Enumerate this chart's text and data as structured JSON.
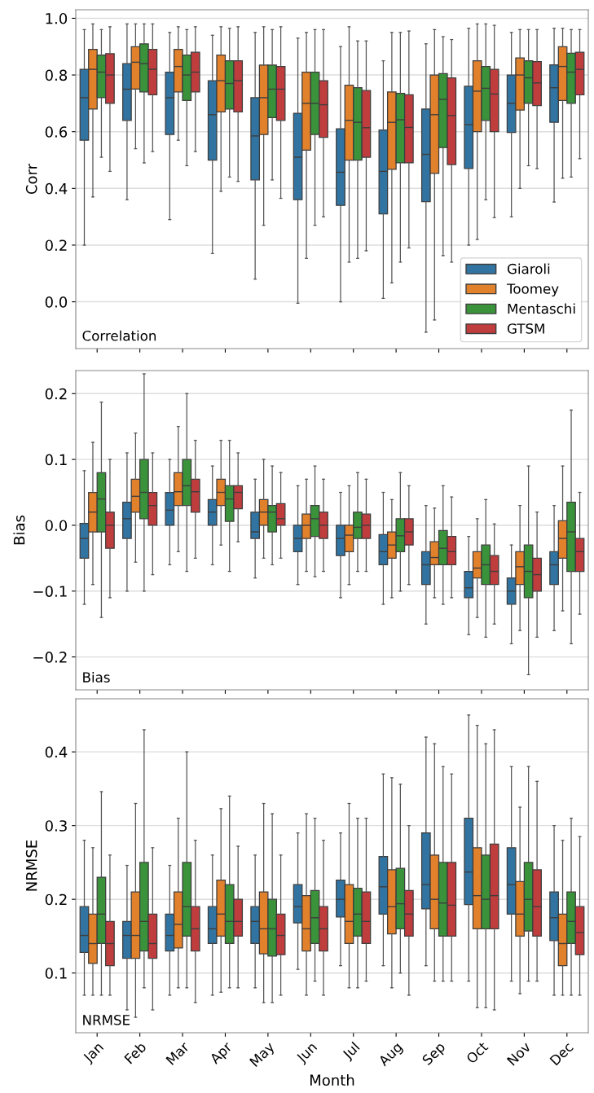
{
  "chart_data": [
    {
      "type": "box",
      "ylabel": "Corr",
      "annotations": [
        "Correlation"
      ],
      "categories": [
        null,
        null,
        null,
        null,
        null,
        null,
        null,
        null,
        null,
        null,
        null,
        null
      ],
      "ylim": [
        -0.165,
        1.03
      ],
      "yticks": [
        {
          "value": 0,
          "label": "0.0"
        },
        {
          "value": 0.2,
          "label": "0.2"
        },
        {
          "value": 0.4,
          "label": "0.4"
        },
        {
          "value": 0.6,
          "label": "0.6"
        },
        {
          "value": 0.8,
          "label": "0.8"
        },
        {
          "value": 1,
          "label": "1.0"
        }
      ],
      "grid": "y",
      "legend": "bottom right",
      "tick_labels": "y",
      "series": [
        {
          "name": "Giaroli",
          "color": "#3274a1",
          "boxes": [
            {
              "low": 0.2,
              "q1": 0.57,
              "median": 0.72,
              "q3": 0.82,
              "high": 0.96
            },
            {
              "low": 0.36,
              "q1": 0.64,
              "median": 0.75,
              "q3": 0.84,
              "high": 0.98
            },
            {
              "low": 0.29,
              "q1": 0.59,
              "median": 0.72,
              "q3": 0.81,
              "high": 0.95
            },
            {
              "low": 0.17,
              "q1": 0.5,
              "median": 0.66,
              "q3": 0.78,
              "high": 0.94
            },
            {
              "low": 0.08,
              "q1": 0.43,
              "median": 0.585,
              "q3": 0.72,
              "high": 0.95
            },
            {
              "low": -0.005,
              "q1": 0.36,
              "median": 0.51,
              "q3": 0.665,
              "high": 0.93
            },
            {
              "low": 0.0,
              "q1": 0.34,
              "median": 0.457,
              "q3": 0.61,
              "high": 0.9
            },
            {
              "low": 0.012,
              "q1": 0.31,
              "median": 0.46,
              "q3": 0.606,
              "high": 0.85
            },
            {
              "low": -0.107,
              "q1": 0.353,
              "median": 0.52,
              "q3": 0.68,
              "high": 0.91
            },
            {
              "low": 0.2,
              "q1": 0.47,
              "median": 0.625,
              "q3": 0.76,
              "high": 0.965
            },
            {
              "low": 0.3,
              "q1": 0.597,
              "median": 0.7,
              "q3": 0.8,
              "high": 0.95
            },
            {
              "low": 0.352,
              "q1": 0.633,
              "median": 0.755,
              "q3": 0.836,
              "high": 0.965
            }
          ]
        },
        {
          "name": "Toomey",
          "color": "#e1812c",
          "boxes": [
            {
              "low": 0.37,
              "q1": 0.68,
              "median": 0.82,
              "q3": 0.89,
              "high": 0.98
            },
            {
              "low": 0.54,
              "q1": 0.75,
              "median": 0.845,
              "q3": 0.9,
              "high": 0.98
            },
            {
              "low": 0.57,
              "q1": 0.74,
              "median": 0.83,
              "q3": 0.89,
              "high": 0.97
            },
            {
              "low": 0.39,
              "q1": 0.67,
              "median": 0.78,
              "q3": 0.87,
              "high": 0.97
            },
            {
              "low": 0.27,
              "q1": 0.59,
              "median": 0.72,
              "q3": 0.835,
              "high": 0.97
            },
            {
              "low": 0.153,
              "q1": 0.535,
              "median": 0.7,
              "q3": 0.81,
              "high": 0.95
            },
            {
              "low": 0.14,
              "q1": 0.5,
              "median": 0.64,
              "q3": 0.764,
              "high": 0.97
            },
            {
              "low": 0.067,
              "q1": 0.467,
              "median": 0.633,
              "q3": 0.74,
              "high": 0.95
            },
            {
              "low": -0.064,
              "q1": 0.453,
              "median": 0.66,
              "q3": 0.8,
              "high": 0.96
            },
            {
              "low": 0.22,
              "q1": 0.6,
              "median": 0.743,
              "q3": 0.85,
              "high": 0.98
            },
            {
              "low": 0.4,
              "q1": 0.676,
              "median": 0.8,
              "q3": 0.86,
              "high": 0.96
            },
            {
              "low": 0.436,
              "q1": 0.71,
              "median": 0.83,
              "q3": 0.9,
              "high": 0.965
            }
          ]
        },
        {
          "name": "Mentaschi",
          "color": "#3a923a",
          "boxes": [
            {
              "low": 0.51,
              "q1": 0.72,
              "median": 0.81,
              "q3": 0.87,
              "high": 0.96
            },
            {
              "low": 0.49,
              "q1": 0.74,
              "median": 0.84,
              "q3": 0.91,
              "high": 0.98
            },
            {
              "low": 0.48,
              "q1": 0.71,
              "median": 0.8,
              "q3": 0.87,
              "high": 0.96
            },
            {
              "low": 0.44,
              "q1": 0.68,
              "median": 0.77,
              "q3": 0.85,
              "high": 0.965
            },
            {
              "low": 0.43,
              "q1": 0.65,
              "median": 0.75,
              "q3": 0.835,
              "high": 0.96
            },
            {
              "low": 0.27,
              "q1": 0.59,
              "median": 0.7,
              "q3": 0.81,
              "high": 0.96
            },
            {
              "low": 0.153,
              "q1": 0.5,
              "median": 0.633,
              "q3": 0.755,
              "high": 0.92
            },
            {
              "low": 0.14,
              "q1": 0.49,
              "median": 0.642,
              "q3": 0.735,
              "high": 0.95
            },
            {
              "low": 0.163,
              "q1": 0.544,
              "median": 0.714,
              "q3": 0.805,
              "high": 0.935
            },
            {
              "low": 0.36,
              "q1": 0.64,
              "median": 0.753,
              "q3": 0.83,
              "high": 0.98
            },
            {
              "low": 0.48,
              "q1": 0.7,
              "median": 0.79,
              "q3": 0.85,
              "high": 0.96
            },
            {
              "low": 0.44,
              "q1": 0.7,
              "median": 0.81,
              "q3": 0.877,
              "high": 0.96
            }
          ]
        },
        {
          "name": "GTSM",
          "color": "#c03d3e",
          "boxes": [
            {
              "low": 0.46,
              "q1": 0.7,
              "median": 0.8,
              "q3": 0.875,
              "high": 0.97
            },
            {
              "low": 0.53,
              "q1": 0.73,
              "median": 0.82,
              "q3": 0.89,
              "high": 0.98
            },
            {
              "low": 0.53,
              "q1": 0.74,
              "median": 0.81,
              "q3": 0.88,
              "high": 0.97
            },
            {
              "low": 0.425,
              "q1": 0.67,
              "median": 0.78,
              "q3": 0.85,
              "high": 0.97
            },
            {
              "low": 0.365,
              "q1": 0.64,
              "median": 0.75,
              "q3": 0.83,
              "high": 0.97
            },
            {
              "low": 0.3,
              "q1": 0.58,
              "median": 0.695,
              "q3": 0.78,
              "high": 0.96
            },
            {
              "low": 0.18,
              "q1": 0.51,
              "median": 0.614,
              "q3": 0.745,
              "high": 0.92
            },
            {
              "low": 0.19,
              "q1": 0.49,
              "median": 0.615,
              "q3": 0.73,
              "high": 0.955
            },
            {
              "low": 0.14,
              "q1": 0.484,
              "median": 0.657,
              "q3": 0.79,
              "high": 0.925
            },
            {
              "low": 0.297,
              "q1": 0.6,
              "median": 0.733,
              "q3": 0.82,
              "high": 0.975
            },
            {
              "low": 0.47,
              "q1": 0.692,
              "median": 0.772,
              "q3": 0.847,
              "high": 0.96
            },
            {
              "low": 0.505,
              "q1": 0.73,
              "median": 0.82,
              "q3": 0.88,
              "high": 0.96
            }
          ]
        }
      ]
    },
    {
      "type": "box",
      "ylabel": "Bias",
      "annotations": [
        "Bias"
      ],
      "categories": [
        null,
        null,
        null,
        null,
        null,
        null,
        null,
        null,
        null,
        null,
        null,
        null
      ],
      "ylim": [
        -0.25,
        0.235
      ],
      "yticks": [
        {
          "value": -0.2,
          "label": "−0.2"
        },
        {
          "value": -0.1,
          "label": "−0.1"
        },
        {
          "value": 0,
          "label": "0.0"
        },
        {
          "value": 0.1,
          "label": "0.1"
        },
        {
          "value": 0.2,
          "label": "0.2"
        }
      ],
      "grid": "y",
      "tick_labels": "y",
      "series": [
        {
          "color": "#3274a1",
          "boxes": [
            {
              "low": -0.12,
              "q1": -0.05,
              "median": -0.02,
              "q3": 0.003,
              "high": 0.083
            },
            {
              "low": -0.1,
              "q1": -0.02,
              "median": 0.01,
              "q3": 0.035,
              "high": 0.11
            },
            {
              "low": -0.06,
              "q1": 0.0,
              "median": 0.023,
              "q3": 0.05,
              "high": 0.1
            },
            {
              "low": -0.06,
              "q1": 0.0,
              "median": 0.02,
              "q3": 0.039,
              "high": 0.09
            },
            {
              "low": -0.08,
              "q1": -0.02,
              "median": -0.01,
              "q3": 0.02,
              "high": 0.07
            },
            {
              "low": -0.09,
              "q1": -0.04,
              "median": -0.02,
              "q3": 0.0,
              "high": 0.06
            },
            {
              "low": -0.11,
              "q1": -0.046,
              "median": -0.02,
              "q3": 0.0,
              "high": 0.05
            },
            {
              "low": -0.12,
              "q1": -0.06,
              "median": -0.04,
              "q3": -0.014,
              "high": 0.05
            },
            {
              "low": -0.15,
              "q1": -0.09,
              "median": -0.06,
              "q3": -0.04,
              "high": 0.03
            },
            {
              "low": -0.166,
              "q1": -0.11,
              "median": -0.095,
              "q3": -0.07,
              "high": -0.017
            },
            {
              "low": -0.18,
              "q1": -0.12,
              "median": -0.1,
              "q3": -0.08,
              "high": -0.03
            },
            {
              "low": -0.16,
              "q1": -0.09,
              "median": -0.06,
              "q3": -0.04,
              "high": 0.03
            }
          ]
        },
        {
          "color": "#e1812c",
          "boxes": [
            {
              "low": -0.09,
              "q1": -0.01,
              "median": 0.02,
              "q3": 0.05,
              "high": 0.126
            },
            {
              "low": -0.056,
              "q1": 0.02,
              "median": 0.044,
              "q3": 0.07,
              "high": 0.14
            },
            {
              "low": -0.04,
              "q1": 0.03,
              "median": 0.051,
              "q3": 0.08,
              "high": 0.15
            },
            {
              "low": -0.03,
              "q1": 0.03,
              "median": 0.05,
              "q3": 0.07,
              "high": 0.129
            },
            {
              "low": -0.05,
              "q1": 0.0,
              "median": 0.02,
              "q3": 0.039,
              "high": 0.1
            },
            {
              "low": -0.07,
              "q1": -0.02,
              "median": 0.0,
              "q3": 0.017,
              "high": 0.07
            },
            {
              "low": -0.09,
              "q1": -0.04,
              "median": -0.015,
              "q3": 0.0,
              "high": 0.06
            },
            {
              "low": -0.11,
              "q1": -0.05,
              "median": -0.03,
              "q3": -0.01,
              "high": 0.039
            },
            {
              "low": -0.11,
              "q1": -0.06,
              "median": -0.049,
              "q3": -0.025,
              "high": 0.026
            },
            {
              "low": -0.14,
              "q1": -0.08,
              "median": -0.065,
              "q3": -0.04,
              "high": 0.01
            },
            {
              "low": -0.16,
              "q1": -0.09,
              "median": -0.063,
              "q3": -0.04,
              "high": 0.03
            },
            {
              "low": -0.13,
              "q1": -0.05,
              "median": -0.02,
              "q3": 0.007,
              "high": 0.09
            }
          ]
        },
        {
          "color": "#3a923a",
          "boxes": [
            {
              "low": -0.14,
              "q1": -0.01,
              "median": 0.04,
              "q3": 0.08,
              "high": 0.187
            },
            {
              "low": -0.1,
              "q1": 0.01,
              "median": 0.05,
              "q3": 0.1,
              "high": 0.23
            },
            {
              "low": -0.07,
              "q1": 0.03,
              "median": 0.06,
              "q3": 0.1,
              "high": 0.2
            },
            {
              "low": -0.07,
              "q1": 0.006,
              "median": 0.04,
              "q3": 0.06,
              "high": 0.129
            },
            {
              "low": -0.06,
              "q1": -0.01,
              "median": 0.02,
              "q3": 0.03,
              "high": 0.09
            },
            {
              "low": -0.078,
              "q1": -0.017,
              "median": 0.01,
              "q3": 0.03,
              "high": 0.09
            },
            {
              "low": -0.07,
              "q1": -0.02,
              "median": -0.003,
              "q3": 0.02,
              "high": 0.08
            },
            {
              "low": -0.1,
              "q1": -0.04,
              "median": -0.016,
              "q3": 0.01,
              "high": 0.08
            },
            {
              "low": -0.12,
              "q1": -0.06,
              "median": -0.035,
              "q3": -0.008,
              "high": 0.06
            },
            {
              "low": -0.17,
              "q1": -0.09,
              "median": -0.06,
              "q3": -0.03,
              "high": 0.039
            },
            {
              "low": -0.227,
              "q1": -0.11,
              "median": -0.07,
              "q3": -0.03,
              "high": 0.09
            },
            {
              "low": -0.18,
              "q1": -0.07,
              "median": -0.01,
              "q3": 0.035,
              "high": 0.175
            }
          ]
        },
        {
          "color": "#c03d3e",
          "boxes": [
            {
              "low": -0.11,
              "q1": -0.035,
              "median": 0.0,
              "q3": 0.02,
              "high": 0.1
            },
            {
              "low": -0.075,
              "q1": 0.0,
              "median": 0.03,
              "q3": 0.05,
              "high": 0.11
            },
            {
              "low": -0.05,
              "q1": 0.02,
              "median": 0.051,
              "q3": 0.07,
              "high": 0.129
            },
            {
              "low": -0.025,
              "q1": 0.025,
              "median": 0.05,
              "q3": 0.06,
              "high": 0.11
            },
            {
              "low": -0.05,
              "q1": 0.0,
              "median": 0.01,
              "q3": 0.033,
              "high": 0.08
            },
            {
              "low": -0.07,
              "q1": -0.02,
              "median": 0.0,
              "q3": 0.02,
              "high": 0.07
            },
            {
              "low": -0.07,
              "q1": -0.02,
              "median": 0.0,
              "q3": 0.017,
              "high": 0.07
            },
            {
              "low": -0.09,
              "q1": -0.03,
              "median": -0.01,
              "q3": 0.01,
              "high": 0.06
            },
            {
              "low": -0.11,
              "q1": -0.06,
              "median": -0.04,
              "q3": -0.017,
              "high": 0.043
            },
            {
              "low": -0.15,
              "q1": -0.09,
              "median": -0.07,
              "q3": -0.046,
              "high": 0.002
            },
            {
              "low": -0.17,
              "q1": -0.1,
              "median": -0.075,
              "q3": -0.05,
              "high": 0.02
            },
            {
              "low": -0.135,
              "q1": -0.07,
              "median": -0.04,
              "q3": -0.02,
              "high": 0.05
            }
          ]
        }
      ]
    },
    {
      "type": "box",
      "ylabel": "NRMSE",
      "xlabel": "Month",
      "annotations": [
        "NRMSE"
      ],
      "categories": [
        "Jan",
        "Feb",
        "Mar",
        "Apr",
        "May",
        "Jun",
        "Jul",
        "Aug",
        "Sep",
        "Oct",
        "Nov",
        "Dec"
      ],
      "ylim": [
        0.019,
        0.472
      ],
      "yticks": [
        0.1,
        0.2,
        0.3,
        0.4
      ],
      "grid": "y",
      "series": [
        {
          "color": "#3274a1",
          "boxes": [
            {
              "low": 0.07,
              "q1": 0.128,
              "median": 0.151,
              "q3": 0.19,
              "high": 0.28
            },
            {
              "low": 0.05,
              "q1": 0.12,
              "median": 0.151,
              "q3": 0.17,
              "high": 0.246
            },
            {
              "low": 0.07,
              "q1": 0.13,
              "median": 0.151,
              "q3": 0.18,
              "high": 0.246
            },
            {
              "low": 0.07,
              "q1": 0.14,
              "median": 0.16,
              "q3": 0.19,
              "high": 0.26
            },
            {
              "low": 0.08,
              "q1": 0.14,
              "median": 0.17,
              "q3": 0.19,
              "high": 0.26
            },
            {
              "low": 0.105,
              "q1": 0.168,
              "median": 0.19,
              "q3": 0.22,
              "high": 0.29
            },
            {
              "low": 0.11,
              "q1": 0.176,
              "median": 0.2,
              "q3": 0.226,
              "high": 0.29
            },
            {
              "low": 0.11,
              "q1": 0.18,
              "median": 0.217,
              "q3": 0.258,
              "high": 0.37
            },
            {
              "low": 0.11,
              "q1": 0.187,
              "median": 0.22,
              "q3": 0.29,
              "high": 0.42
            },
            {
              "low": 0.089,
              "q1": 0.193,
              "median": 0.237,
              "q3": 0.31,
              "high": 0.45
            },
            {
              "low": 0.089,
              "q1": 0.18,
              "median": 0.22,
              "q3": 0.27,
              "high": 0.38
            },
            {
              "low": 0.07,
              "q1": 0.144,
              "median": 0.175,
              "q3": 0.21,
              "high": 0.3
            }
          ]
        },
        {
          "color": "#e1812c",
          "boxes": [
            {
              "low": 0.07,
              "q1": 0.113,
              "median": 0.14,
              "q3": 0.18,
              "high": 0.27
            },
            {
              "low": 0.04,
              "q1": 0.12,
              "median": 0.151,
              "q3": 0.21,
              "high": 0.33
            },
            {
              "low": 0.08,
              "q1": 0.134,
              "median": 0.166,
              "q3": 0.21,
              "high": 0.31
            },
            {
              "low": 0.074,
              "q1": 0.15,
              "median": 0.18,
              "q3": 0.226,
              "high": 0.323
            },
            {
              "low": 0.06,
              "q1": 0.126,
              "median": 0.16,
              "q3": 0.21,
              "high": 0.33
            },
            {
              "low": 0.07,
              "q1": 0.13,
              "median": 0.16,
              "q3": 0.205,
              "high": 0.316
            },
            {
              "low": 0.08,
              "q1": 0.14,
              "median": 0.17,
              "q3": 0.22,
              "high": 0.33
            },
            {
              "low": 0.08,
              "q1": 0.153,
              "median": 0.19,
              "q3": 0.24,
              "high": 0.365
            },
            {
              "low": 0.089,
              "q1": 0.16,
              "median": 0.2,
              "q3": 0.26,
              "high": 0.411
            },
            {
              "low": 0.053,
              "q1": 0.16,
              "median": 0.205,
              "q3": 0.27,
              "high": 0.436
            },
            {
              "low": 0.072,
              "q1": 0.15,
              "median": 0.18,
              "q3": 0.224,
              "high": 0.325
            },
            {
              "low": 0.07,
              "q1": 0.11,
              "median": 0.14,
              "q3": 0.18,
              "high": 0.28
            }
          ]
        },
        {
          "color": "#3a923a",
          "boxes": [
            {
              "low": 0.07,
              "q1": 0.14,
              "median": 0.18,
              "q3": 0.23,
              "high": 0.346
            },
            {
              "low": 0.08,
              "q1": 0.13,
              "median": 0.17,
              "q3": 0.25,
              "high": 0.43
            },
            {
              "low": 0.08,
              "q1": 0.15,
              "median": 0.19,
              "q3": 0.25,
              "high": 0.4
            },
            {
              "low": 0.08,
              "q1": 0.14,
              "median": 0.17,
              "q3": 0.22,
              "high": 0.34
            },
            {
              "low": 0.06,
              "q1": 0.123,
              "median": 0.16,
              "q3": 0.2,
              "high": 0.316
            },
            {
              "low": 0.089,
              "q1": 0.14,
              "median": 0.175,
              "q3": 0.212,
              "high": 0.31
            },
            {
              "low": 0.08,
              "q1": 0.15,
              "median": 0.18,
              "q3": 0.215,
              "high": 0.31
            },
            {
              "low": 0.1,
              "q1": 0.16,
              "median": 0.194,
              "q3": 0.242,
              "high": 0.356
            },
            {
              "low": 0.089,
              "q1": 0.15,
              "median": 0.195,
              "q3": 0.25,
              "high": 0.38
            },
            {
              "low": 0.053,
              "q1": 0.16,
              "median": 0.2,
              "q3": 0.26,
              "high": 0.411
            },
            {
              "low": 0.089,
              "q1": 0.157,
              "median": 0.2,
              "q3": 0.25,
              "high": 0.38
            },
            {
              "low": 0.07,
              "q1": 0.14,
              "median": 0.17,
              "q3": 0.21,
              "high": 0.31
            }
          ]
        },
        {
          "color": "#c03d3e",
          "boxes": [
            {
              "low": 0.07,
              "q1": 0.11,
              "median": 0.14,
              "q3": 0.17,
              "high": 0.26
            },
            {
              "low": 0.05,
              "q1": 0.12,
              "median": 0.14,
              "q3": 0.18,
              "high": 0.27
            },
            {
              "low": 0.06,
              "q1": 0.13,
              "median": 0.16,
              "q3": 0.19,
              "high": 0.28
            },
            {
              "low": 0.08,
              "q1": 0.15,
              "median": 0.17,
              "q3": 0.2,
              "high": 0.272
            },
            {
              "low": 0.07,
              "q1": 0.125,
              "median": 0.151,
              "q3": 0.18,
              "high": 0.26
            },
            {
              "low": 0.07,
              "q1": 0.13,
              "median": 0.16,
              "q3": 0.19,
              "high": 0.28
            },
            {
              "low": 0.089,
              "q1": 0.14,
              "median": 0.17,
              "q3": 0.21,
              "high": 0.31
            },
            {
              "low": 0.07,
              "q1": 0.15,
              "median": 0.18,
              "q3": 0.212,
              "high": 0.3
            },
            {
              "low": 0.089,
              "q1": 0.15,
              "median": 0.192,
              "q3": 0.25,
              "high": 0.37
            },
            {
              "low": 0.05,
              "q1": 0.16,
              "median": 0.205,
              "q3": 0.275,
              "high": 0.43
            },
            {
              "low": 0.089,
              "q1": 0.15,
              "median": 0.19,
              "q3": 0.24,
              "high": 0.36
            },
            {
              "low": 0.07,
              "q1": 0.125,
              "median": 0.155,
              "q3": 0.19,
              "high": 0.285
            }
          ]
        }
      ]
    }
  ]
}
